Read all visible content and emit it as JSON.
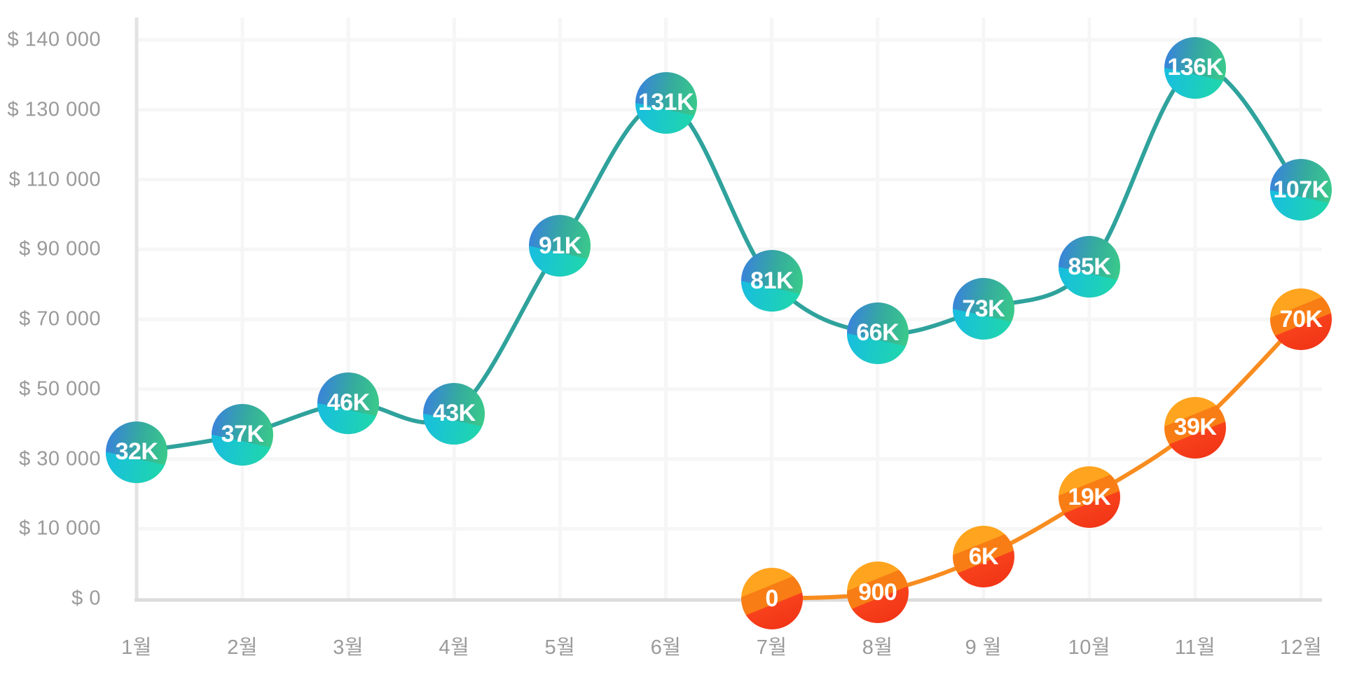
{
  "chart_data": {
    "type": "line",
    "title": "",
    "xlabel": "",
    "ylabel": "",
    "grid": true,
    "legend_position": "none",
    "categories": [
      "1월",
      "2월",
      "3월",
      "4월",
      "5월",
      "6월",
      "7월",
      "8월",
      "9 월",
      "10월",
      "11월",
      "12월"
    ],
    "y_axis_tick_labels": [
      "$ 0",
      "$ 10 000",
      "$ 30 000",
      "$ 50 000",
      "$ 70 000",
      "$ 90 000",
      "$ 110 000",
      "$ 130 000",
      "$ 140 000"
    ],
    "y_axis_tick_values": [
      0,
      10000,
      30000,
      50000,
      70000,
      90000,
      110000,
      130000,
      140000
    ],
    "y_axis_note": "tick labels are rendered at equal vertical spacing",
    "series": [
      {
        "name": "teal-series",
        "start_month_index": 1,
        "values": [
          32000,
          37000,
          46000,
          43000,
          91000,
          131000,
          81000,
          66000,
          73000,
          85000,
          136000,
          107000
        ],
        "point_labels": [
          "32K",
          "37K",
          "46K",
          "43K",
          "91K",
          "131K",
          "81K",
          "66K",
          "73K",
          "85K",
          "136K",
          "107K"
        ],
        "line_color": "#2fa29c",
        "point_style": "teal"
      },
      {
        "name": "orange-series",
        "start_month_index": 7,
        "values": [
          0,
          900,
          6000,
          19000,
          39000,
          70000
        ],
        "point_labels": [
          "0",
          "900",
          "6K",
          "19K",
          "39K",
          "70K"
        ],
        "line_color": "#f88c1f",
        "point_style": "orange"
      }
    ]
  },
  "colors": {
    "background": "#ffffff",
    "grid_line": "#f6f6f6",
    "axis_line_vertical": "#e3e3e3",
    "axis_line_bottom": "#dcdcdc",
    "axis_text": "#9a9a9a",
    "point_label_text": "#ffffff",
    "teal_line": "#2fa29c",
    "orange_line": "#f88c1f",
    "teal_point_gradient": [
      "#3a7ee2",
      "#35ab9e",
      "#3bcf87",
      "#17bbe5",
      "#20d9a6"
    ],
    "orange_point_gradient": [
      "#ffa41e",
      "#f87d15",
      "#f8421c",
      "#ee3014"
    ]
  }
}
